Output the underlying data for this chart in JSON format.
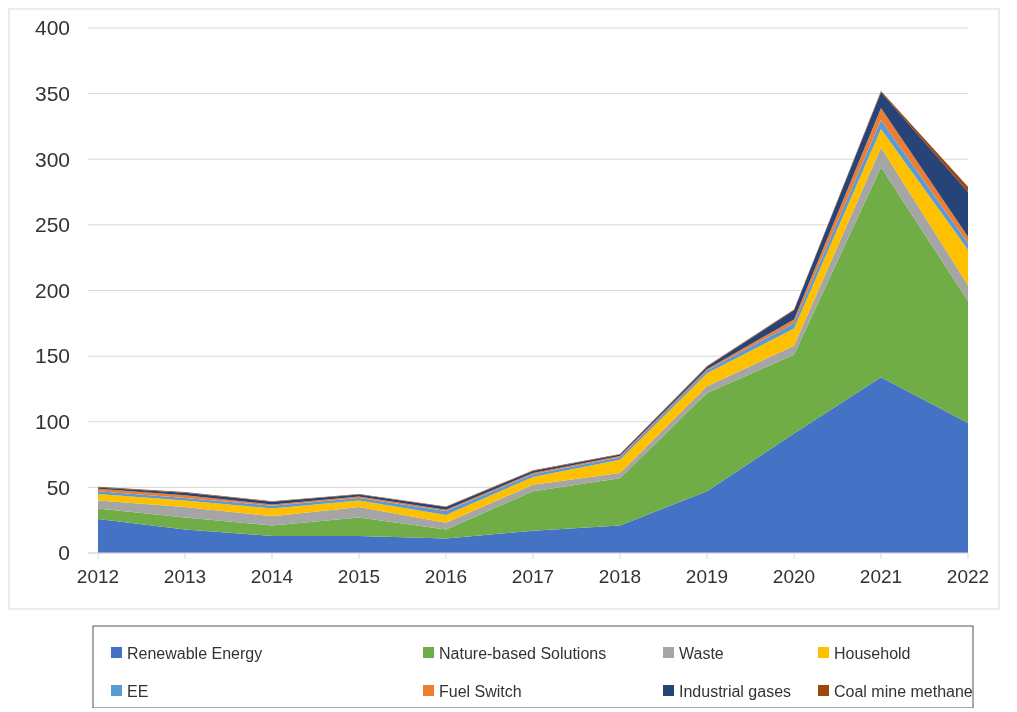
{
  "chart_data": {
    "type": "area",
    "stacked": true,
    "categories": [
      "2012",
      "2013",
      "2014",
      "2015",
      "2016",
      "2017",
      "2018",
      "2019",
      "2020",
      "2021",
      "2022"
    ],
    "ylim": [
      0,
      400
    ],
    "yticks": [
      0,
      50,
      100,
      150,
      200,
      250,
      300,
      350,
      400
    ],
    "grid": "y",
    "legend": "bottom",
    "series": [
      {
        "name": "Renewable Energy",
        "color": "#4472c4",
        "values": [
          26,
          18,
          13,
          13,
          11,
          17,
          21,
          47,
          91,
          134,
          99
        ]
      },
      {
        "name": "Nature-based Solutions",
        "color": "#70ad47",
        "values": [
          8,
          9,
          8,
          14,
          7,
          30,
          36,
          75,
          60,
          160,
          93
        ]
      },
      {
        "name": "Waste",
        "color": "#a5a5a5",
        "values": [
          6,
          8,
          7,
          8,
          5,
          5,
          4,
          5,
          7,
          15,
          12
        ]
      },
      {
        "name": "Household",
        "color": "#ffc000",
        "values": [
          5,
          5,
          6,
          5,
          6,
          6,
          10,
          10,
          13,
          14,
          27
        ]
      },
      {
        "name": "EE",
        "color": "#5b9bd5",
        "values": [
          2,
          2,
          2,
          2,
          3,
          2,
          2,
          2,
          4,
          7,
          5
        ]
      },
      {
        "name": "Fuel Switch",
        "color": "#ed7d31",
        "values": [
          2,
          2,
          1,
          1,
          1,
          1,
          1,
          1,
          3,
          9,
          5
        ]
      },
      {
        "name": "Industrial gases",
        "color": "#264478",
        "values": [
          1,
          2,
          2,
          1.5,
          2,
          1.5,
          1,
          2,
          7,
          12,
          34
        ]
      },
      {
        "name": "Coal mine methane",
        "color": "#9e480e",
        "values": [
          0.5,
          0.5,
          0.5,
          0.5,
          0.5,
          0.5,
          0.5,
          0.5,
          0.5,
          1,
          4
        ]
      }
    ]
  }
}
